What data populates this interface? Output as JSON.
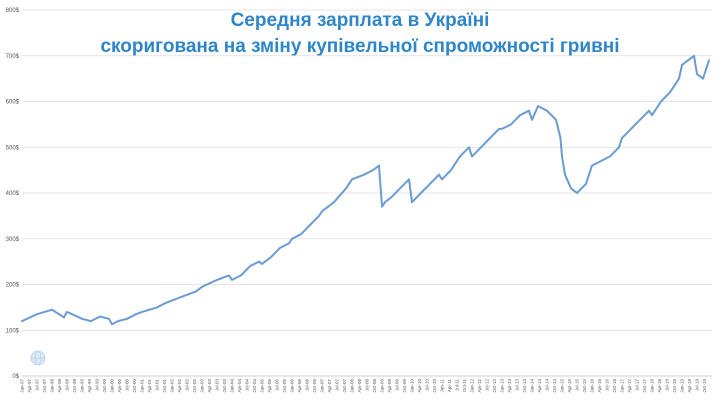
{
  "chart_data": {
    "type": "line",
    "title": "Середня зарплата в Україні",
    "subtitle": "скоригована на зміну купівельної спроможності гривні",
    "xlabel": "",
    "ylabel": "",
    "ylim": [
      0,
      800
    ],
    "yticks": [
      0,
      100,
      200,
      300,
      400,
      500,
      600,
      700,
      800
    ],
    "ytick_labels": [
      "0$",
      "100$",
      "200$",
      "300$",
      "400$",
      "500$",
      "600$",
      "700$",
      "800$"
    ],
    "grid": true,
    "legend": "none",
    "x_start": "Jan-97",
    "x_end": "Dec-19",
    "xtick_labels": [
      "Jan-97",
      "Apr-97",
      "Jul-97",
      "Oct-97",
      "Jan-98",
      "Apr-98",
      "Jul-98",
      "Oct-98",
      "Jan-99",
      "Apr-99",
      "Jul-99",
      "Oct-99",
      "Jan-00",
      "Apr-00",
      "Jul-00",
      "Oct-00",
      "Jan-01",
      "Apr-01",
      "Jul-01",
      "Oct-01",
      "Jan-02",
      "Apr-02",
      "Jul-02",
      "Oct-02",
      "Jan-03",
      "Apr-03",
      "Jul-03",
      "Oct-03",
      "Jan-04",
      "Apr-04",
      "Jul-04",
      "Oct-04",
      "Jan-05",
      "Apr-05",
      "Jul-05",
      "Oct-05",
      "Jan-06",
      "Apr-06",
      "Jul-06",
      "Oct-06",
      "Jan-07",
      "Apr-07",
      "Jul-07",
      "Oct-07",
      "Jan-08",
      "Apr-08",
      "Jul-08",
      "Oct-08",
      "Jan-09",
      "Apr-09",
      "Jul-09",
      "Oct-09",
      "Jan-10",
      "Apr-10",
      "Jul-10",
      "Oct-10",
      "Jan-11",
      "Apr-11",
      "Jul-11",
      "Oct-11",
      "Jan-12",
      "Apr-12",
      "Jul-12",
      "Oct-12",
      "Jan-13",
      "Apr-13",
      "Jul-13",
      "Oct-13",
      "Jan-14",
      "Apr-14",
      "Jul-14",
      "Oct-14",
      "Jan-15",
      "Apr-15",
      "Jul-15",
      "Oct-15",
      "Jan-16",
      "Apr-16",
      "Jul-16",
      "Oct-16",
      "Jan-17",
      "Apr-17",
      "Jul-17",
      "Oct-17",
      "Jan-18",
      "Apr-18",
      "Jul-18",
      "Oct-18",
      "Jan-19",
      "Apr-19",
      "Jul-19",
      "Oct-19"
    ],
    "series": [
      {
        "color": "#6A9BD1",
        "x": [
          1997.0,
          1997.5,
          1998.0,
          1998.4,
          1998.5,
          1999.0,
          1999.3,
          1999.6,
          1999.9,
          2000.0,
          2000.2,
          2000.5,
          2000.8,
          2001.0,
          2001.5,
          2001.8,
          2002.0,
          2002.4,
          2002.8,
          2003.0,
          2003.5,
          2003.9,
          2004.0,
          2004.3,
          2004.6,
          2004.9,
          2005.0,
          2005.3,
          2005.6,
          2005.9,
          2006.0,
          2006.3,
          2006.6,
          2006.9,
          2007.0,
          2007.4,
          2007.8,
          2008.0,
          2008.4,
          2008.7,
          2008.9,
          2009.0,
          2009.1,
          2009.3,
          2009.6,
          2009.9,
          2010.0,
          2010.3,
          2010.6,
          2010.9,
          2011.0,
          2011.3,
          2011.6,
          2011.9,
          2012.0,
          2012.3,
          2012.6,
          2012.9,
          2013.0,
          2013.3,
          2013.6,
          2013.9,
          2014.0,
          2014.2,
          2014.5,
          2014.8,
          2014.95,
          2015.0,
          2015.1,
          2015.3,
          2015.5,
          2015.8,
          2015.9,
          2016.0,
          2016.3,
          2016.6,
          2016.9,
          2017.0,
          2017.3,
          2017.6,
          2017.9,
          2018.0,
          2018.3,
          2018.6,
          2018.9,
          2019.0,
          2019.2,
          2019.4,
          2019.5,
          2019.7,
          2019.9
        ],
        "values": [
          120,
          135,
          145,
          128,
          140,
          125,
          120,
          130,
          125,
          113,
          120,
          125,
          135,
          140,
          150,
          160,
          165,
          175,
          185,
          195,
          210,
          220,
          210,
          220,
          240,
          250,
          245,
          260,
          280,
          290,
          300,
          310,
          330,
          350,
          360,
          380,
          410,
          430,
          440,
          450,
          460,
          370,
          380,
          390,
          410,
          430,
          380,
          400,
          420,
          440,
          430,
          450,
          480,
          500,
          480,
          500,
          520,
          540,
          540,
          550,
          570,
          580,
          560,
          590,
          580,
          560,
          520,
          480,
          440,
          410,
          400,
          420,
          440,
          460,
          470,
          480,
          500,
          520,
          540,
          560,
          580,
          570,
          600,
          620,
          650,
          680,
          690,
          700,
          660,
          650,
          690
        ]
      }
    ]
  }
}
